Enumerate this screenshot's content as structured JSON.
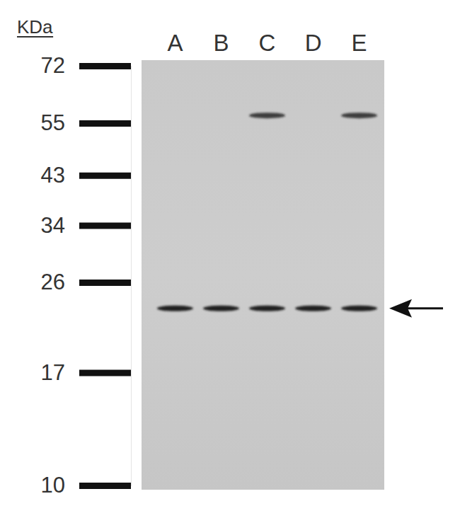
{
  "chart_data": {
    "type": "blot",
    "y_label": "KDa",
    "categories": [
      "A",
      "B",
      "C",
      "D",
      "E"
    ],
    "series": [
      {
        "values": [
          23,
          23,
          23,
          23,
          23
        ]
      },
      {
        "values": [
          null,
          null,
          57,
          null,
          57
        ]
      }
    ],
    "ylim": [
      10,
      72
    ],
    "yticks": [
      72,
      55,
      43,
      34,
      26,
      17,
      10
    ],
    "log": "y"
  }
}
